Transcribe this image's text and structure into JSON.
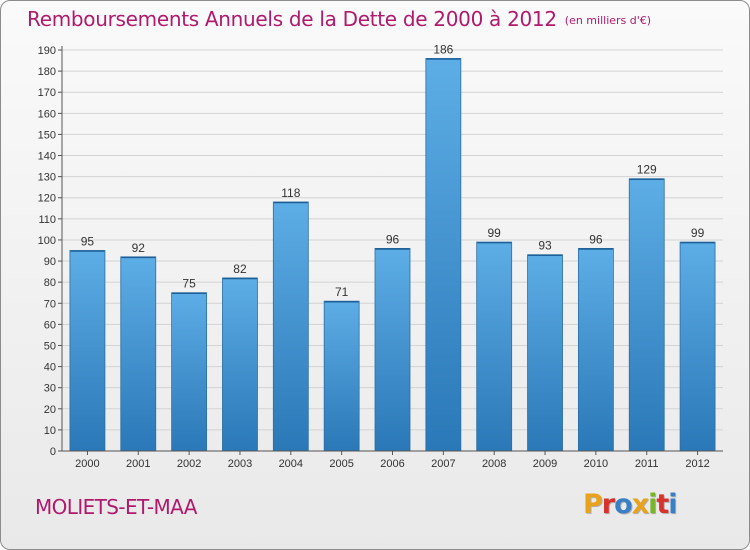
{
  "title": "Remboursements Annuels de la Dette de 2000 à 2012",
  "unit_note": "(en milliers d'€)",
  "commune": "MOLIETS-ET-MAA",
  "brand": {
    "letters": [
      "P",
      "r",
      "o",
      "x",
      "i",
      "t",
      "i"
    ],
    "colors": [
      "#e8a21c",
      "#d9312b",
      "#3a7fc4",
      "#e8a21c",
      "#7ab42a",
      "#d9312b",
      "#3a7fc4"
    ]
  },
  "colors": {
    "title": "#b01a6c",
    "bar_light": "#5dade6",
    "bar_dark": "#2a78b7",
    "axis": "#555555"
  },
  "chart_data": {
    "type": "bar",
    "title": "Remboursements Annuels de la Dette de 2000 à 2012",
    "subtitle": "(en milliers d'€)",
    "categories": [
      "2000",
      "2001",
      "2002",
      "2003",
      "2004",
      "2005",
      "2006",
      "2007",
      "2008",
      "2009",
      "2010",
      "2011",
      "2012"
    ],
    "values": [
      95,
      92,
      75,
      82,
      118,
      71,
      96,
      186,
      99,
      93,
      96,
      129,
      99
    ],
    "ylim": [
      0,
      190
    ],
    "yticks": [
      0,
      10,
      20,
      30,
      40,
      50,
      60,
      70,
      80,
      90,
      100,
      110,
      120,
      130,
      140,
      150,
      160,
      170,
      180,
      190
    ],
    "grid": true,
    "data_labels": true
  }
}
